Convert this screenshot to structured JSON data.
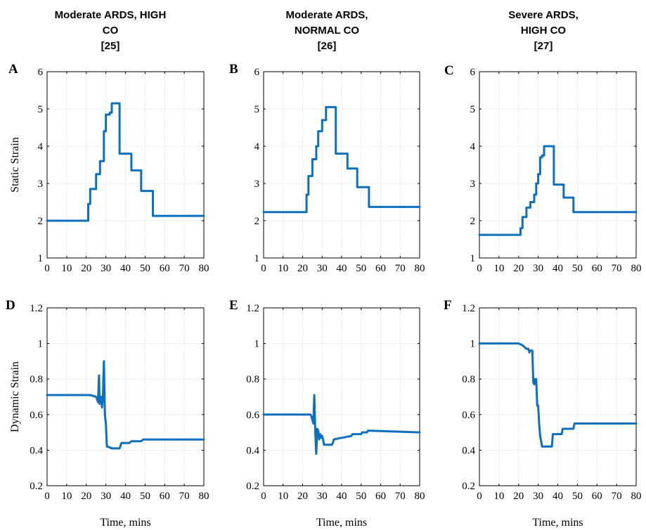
{
  "column_titles": [
    [
      "Moderate ARDS, HIGH",
      "CO",
      "[25]"
    ],
    [
      "Moderate ARDS,",
      "NORMAL CO",
      "[26]"
    ],
    [
      "Severe ARDS,",
      "HIGH CO",
      "[27]"
    ]
  ],
  "colors": {
    "series": "#0e6fbd",
    "grid": "#d9d9d9"
  },
  "chart_data": [
    {
      "panel": "A",
      "type": "line",
      "ylabel": "Static Strain",
      "xlabel": "",
      "xlim": [
        0,
        80
      ],
      "ylim": [
        1,
        6
      ],
      "grid": true,
      "xticks": [
        0,
        10,
        20,
        30,
        40,
        50,
        60,
        70,
        80
      ],
      "yticks": [
        1,
        2,
        3,
        4,
        5,
        6
      ],
      "x": [
        0,
        21,
        21,
        22,
        22,
        23,
        23,
        25,
        25,
        26,
        26,
        27,
        27,
        29,
        29,
        30,
        30,
        31,
        31,
        32,
        32,
        33,
        33,
        34,
        34,
        37,
        37,
        43,
        43,
        48,
        48,
        54,
        54,
        80
      ],
      "y": [
        2,
        2,
        2.45,
        2.45,
        2.85,
        2.85,
        2.85,
        2.85,
        3.25,
        3.25,
        3.25,
        3.25,
        3.6,
        3.6,
        4.4,
        4.4,
        4.85,
        4.85,
        4.85,
        4.85,
        4.9,
        4.9,
        5.15,
        5.15,
        5.15,
        5.15,
        3.8,
        3.8,
        3.35,
        3.35,
        2.8,
        2.8,
        2.13,
        2.13
      ]
    },
    {
      "panel": "B",
      "type": "line",
      "ylabel": "",
      "xlabel": "",
      "xlim": [
        0,
        80
      ],
      "ylim": [
        1,
        6
      ],
      "grid": true,
      "xticks": [
        0,
        10,
        20,
        30,
        40,
        50,
        60,
        70,
        80
      ],
      "yticks": [
        1,
        2,
        3,
        4,
        5,
        6
      ],
      "x": [
        0,
        22,
        22,
        23,
        23,
        25,
        25,
        27,
        27,
        28,
        28,
        30,
        30,
        32,
        32,
        34,
        34,
        37,
        37,
        43,
        43,
        48,
        48,
        54,
        54,
        80
      ],
      "y": [
        2.23,
        2.23,
        2.7,
        2.7,
        3.2,
        3.2,
        3.65,
        3.65,
        4,
        4,
        4.4,
        4.4,
        4.7,
        4.7,
        5.05,
        5.05,
        5.05,
        5.05,
        3.8,
        3.8,
        3.4,
        3.4,
        2.9,
        2.9,
        2.37,
        2.37
      ]
    },
    {
      "panel": "C",
      "type": "line",
      "ylabel": "",
      "xlabel": "",
      "xlim": [
        0,
        80
      ],
      "ylim": [
        1,
        6
      ],
      "grid": true,
      "xticks": [
        0,
        10,
        20,
        30,
        40,
        50,
        60,
        70,
        80
      ],
      "yticks": [
        1,
        2,
        3,
        4,
        5,
        6
      ],
      "x": [
        0,
        21,
        21,
        22,
        22,
        24,
        24,
        26,
        26,
        28,
        28,
        29,
        29,
        30,
        30,
        31,
        31,
        32,
        32,
        33,
        33,
        35,
        35,
        38,
        38,
        43,
        43,
        48,
        48,
        80
      ],
      "y": [
        1.62,
        1.62,
        1.8,
        1.8,
        2.1,
        2.1,
        2.35,
        2.35,
        2.5,
        2.5,
        2.7,
        2.7,
        3,
        3,
        3.25,
        3.25,
        3.7,
        3.7,
        3.75,
        3.75,
        4,
        4,
        4,
        4,
        2.97,
        2.97,
        2.62,
        2.62,
        2.23,
        2.23
      ]
    },
    {
      "panel": "D",
      "type": "line",
      "ylabel": "Dynamic Strain",
      "xlabel": "Time, mins",
      "xlim": [
        0,
        80
      ],
      "ylim": [
        0.2,
        1.2
      ],
      "grid": true,
      "xticks": [
        0,
        10,
        20,
        30,
        40,
        50,
        60,
        70,
        80
      ],
      "yticks": [
        0.2,
        0.4,
        0.6,
        0.8,
        1,
        1.2
      ],
      "x": [
        0,
        22,
        25,
        26,
        26.5,
        26.8,
        27,
        27.5,
        28,
        28.5,
        29,
        29.5,
        30,
        30.5,
        31,
        33,
        37,
        38,
        42,
        43,
        48,
        49,
        80
      ],
      "y": [
        0.71,
        0.71,
        0.7,
        0.67,
        0.82,
        0.66,
        0.68,
        0.7,
        0.64,
        0.7,
        0.9,
        0.6,
        0.55,
        0.42,
        0.42,
        0.41,
        0.41,
        0.44,
        0.44,
        0.45,
        0.45,
        0.46,
        0.46
      ]
    },
    {
      "panel": "E",
      "type": "line",
      "ylabel": "",
      "xlabel": "Time, mins",
      "xlim": [
        0,
        80
      ],
      "ylim": [
        0.2,
        1.2
      ],
      "grid": true,
      "xticks": [
        0,
        10,
        20,
        30,
        40,
        50,
        60,
        70,
        80
      ],
      "yticks": [
        0.2,
        0.4,
        0.6,
        0.8,
        1,
        1.2
      ],
      "x": [
        0,
        24,
        24.5,
        25,
        25.5,
        26,
        26.5,
        27,
        27.5,
        28,
        28.5,
        29,
        29.5,
        30,
        30.5,
        31,
        35,
        35.5,
        36,
        40,
        40.5,
        45,
        45.5,
        50,
        50.5,
        53,
        53.5,
        80
      ],
      "y": [
        0.6,
        0.6,
        0.59,
        0.57,
        0.55,
        0.71,
        0.5,
        0.38,
        0.52,
        0.51,
        0.46,
        0.49,
        0.47,
        0.48,
        0.46,
        0.43,
        0.43,
        0.44,
        0.46,
        0.47,
        0.47,
        0.48,
        0.49,
        0.49,
        0.5,
        0.5,
        0.51,
        0.5
      ]
    },
    {
      "panel": "F",
      "type": "line",
      "ylabel": "",
      "xlabel": "Time, mins",
      "xlim": [
        0,
        80
      ],
      "ylim": [
        0.2,
        1.2
      ],
      "grid": true,
      "xticks": [
        0,
        10,
        20,
        30,
        40,
        50,
        60,
        70,
        80
      ],
      "yticks": [
        0.2,
        0.4,
        0.6,
        0.8,
        1,
        1.2
      ],
      "x": [
        0,
        20,
        22,
        23,
        24,
        25,
        25.5,
        26,
        27,
        27.5,
        28,
        28.5,
        29,
        29.5,
        30,
        30.5,
        31,
        32,
        37,
        37.5,
        42,
        42.5,
        48,
        48.5,
        80
      ],
      "y": [
        1,
        1,
        0.99,
        0.98,
        0.97,
        0.97,
        0.95,
        0.96,
        0.96,
        0.78,
        0.77,
        0.8,
        0.8,
        0.65,
        0.65,
        0.55,
        0.48,
        0.42,
        0.42,
        0.49,
        0.49,
        0.52,
        0.52,
        0.55,
        0.55
      ]
    }
  ]
}
